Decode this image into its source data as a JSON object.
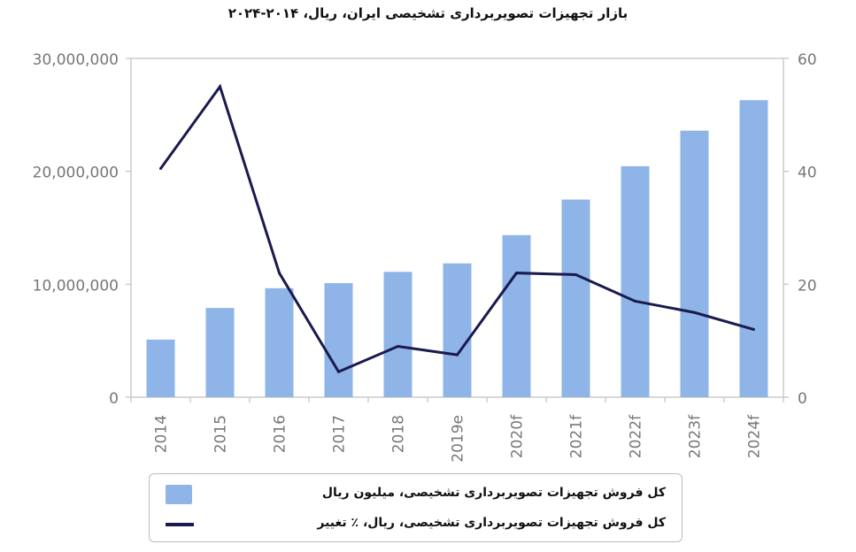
{
  "chart_data": {
    "type": "bar",
    "title": "بازار تجهیزات تصویربرداری تشخیصی ایران، ریال، ۲۰۱۴-۲۰۲۴",
    "categories": [
      "2014",
      "2015",
      "2016",
      "2017",
      "2018",
      "2019e",
      "2020f",
      "2021f",
      "2022f",
      "2023f",
      "2024f"
    ],
    "series": [
      {
        "name": "کل فروش تجهیزات تصویربرداری تشخیصی، میلیون ریال",
        "type": "bar",
        "axis": "left",
        "color": "#8fb4e8",
        "values": [
          5100000,
          7900000,
          9650000,
          10100000,
          11100000,
          11850000,
          14350000,
          17500000,
          20450000,
          23600000,
          26300000
        ]
      },
      {
        "name": "کل فروش تجهیزات تصویربرداری تشخیصی، ریال، ٪ تغییر",
        "type": "line",
        "axis": "right",
        "color": "#1a1a4e",
        "values": [
          40.5,
          55,
          22,
          4.5,
          9,
          7.5,
          22,
          21.7,
          17,
          15,
          12
        ]
      }
    ],
    "ylim_left": [
      0,
      30000000
    ],
    "ylim_right": [
      0,
      60
    ],
    "yticks_left": [
      "0",
      "10,000,000",
      "20,000,000",
      "30,000,000"
    ],
    "yticks_right": [
      "0",
      "20",
      "40",
      "60"
    ],
    "grid": false,
    "legend_position": "bottom"
  }
}
